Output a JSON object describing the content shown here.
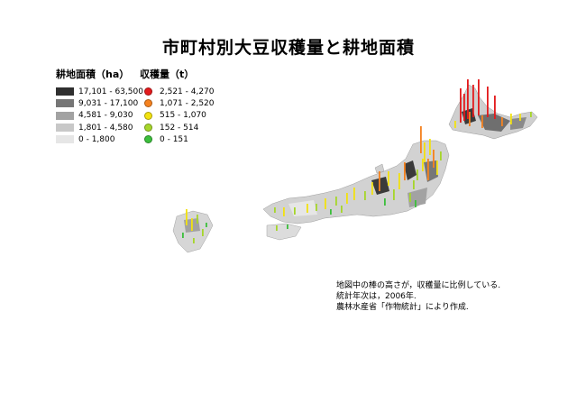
{
  "title": "市町村別大豆収穫量と耕地面積",
  "legend_area": {
    "title": "耕地面積（ha）",
    "items": [
      {
        "label": "17,101 - 63,500",
        "color": "#2f2f2f"
      },
      {
        "label": "9,031 - 17,100",
        "color": "#767676"
      },
      {
        "label": "4,581 - 9,030",
        "color": "#a2a2a2"
      },
      {
        "label": "1,801 - 4,580",
        "color": "#c8c8c8"
      },
      {
        "label": "0 - 1,800",
        "color": "#e6e6e6"
      }
    ]
  },
  "legend_yield": {
    "title": "収穫量（t）",
    "items": [
      {
        "label": "2,521 - 4,270",
        "color": "#e31a1c"
      },
      {
        "label": "1,071 - 2,520",
        "color": "#f5821f"
      },
      {
        "label": "515 - 1,070",
        "color": "#f2e20f"
      },
      {
        "label": "152 - 514",
        "color": "#a6d62a"
      },
      {
        "label": "0 - 151",
        "color": "#3cbf3c"
      }
    ]
  },
  "notes": [
    "地図中の棒の高さが，収穫量に比例している.",
    "統計年次は，2006年.",
    "農林水産省「作物統計」により作成."
  ]
}
